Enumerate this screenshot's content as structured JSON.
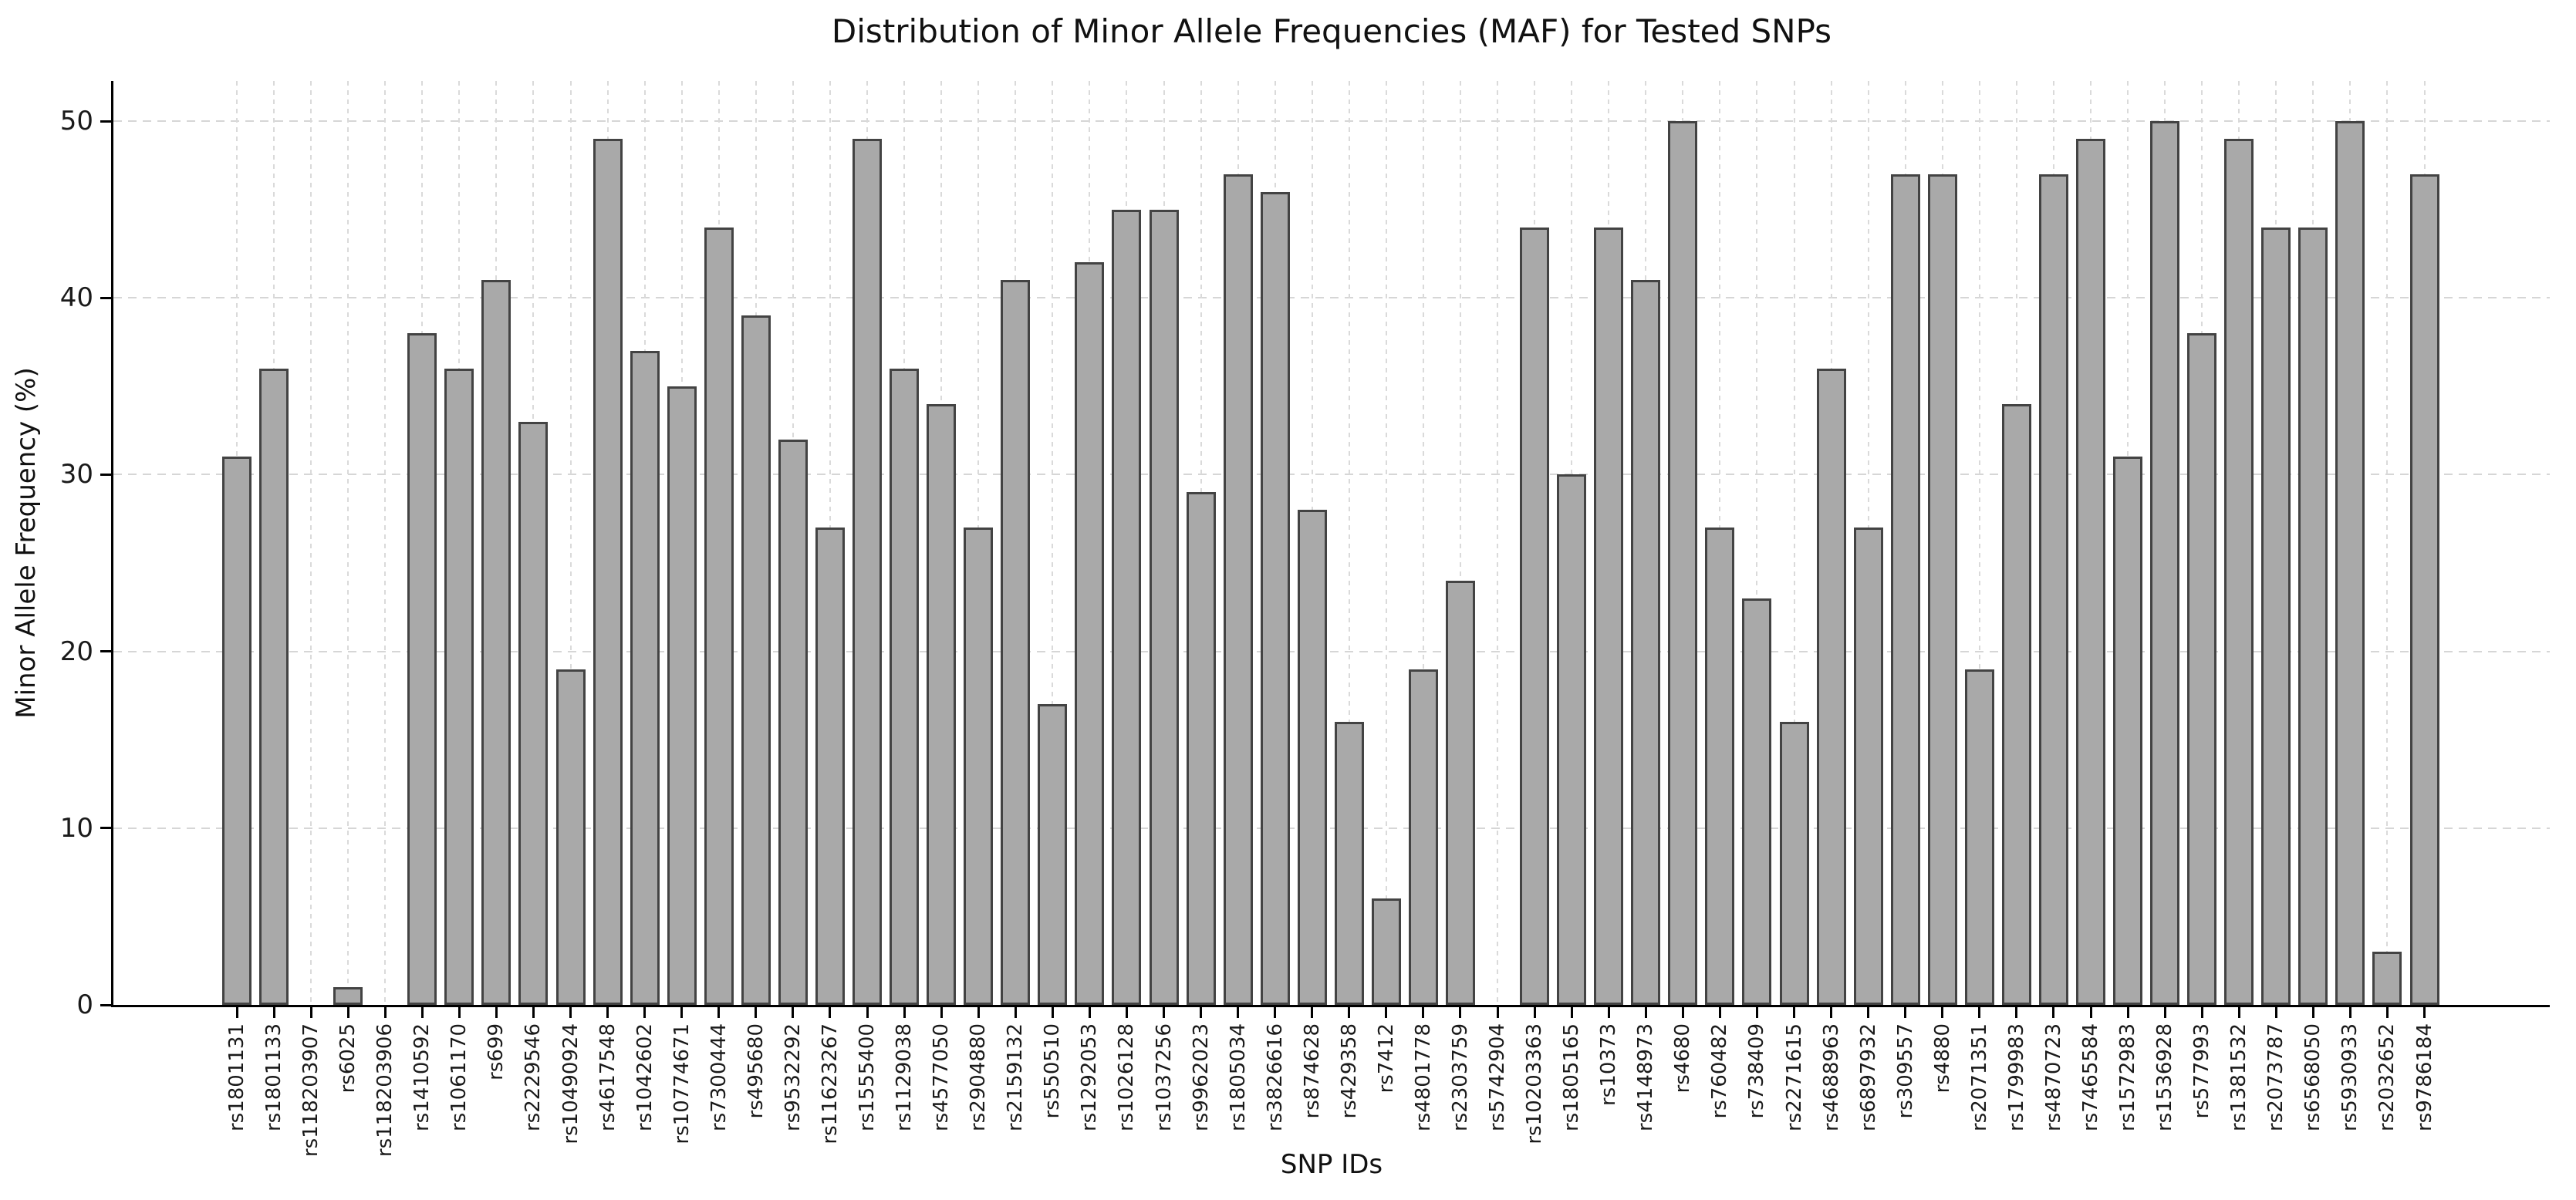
{
  "chart_data": {
    "type": "bar",
    "title": "Distribution of Minor Allele Frequencies (MAF) for Tested SNPs",
    "xlabel": "SNP IDs",
    "ylabel": "Minor Allele Frequency (%)",
    "ylim": [
      0,
      52.3
    ],
    "yticks": [
      0,
      10,
      20,
      30,
      40,
      50
    ],
    "grid": true,
    "legend": "none",
    "bar_color": "#a9a9a9",
    "bar_edge_color": "#434343",
    "grid_color": "#d6d6d6",
    "categories": [
      "rs1801131",
      "rs1801133",
      "rs118203907",
      "rs6025",
      "rs118203906",
      "rs1410592",
      "rs1061170",
      "rs699",
      "rs2229546",
      "rs10490924",
      "rs4617548",
      "rs1042602",
      "rs10774671",
      "rs7300444",
      "rs495680",
      "rs9532292",
      "rs11623267",
      "rs1555400",
      "rs1129038",
      "rs4577050",
      "rs2904880",
      "rs2159132",
      "rs550510",
      "rs1292053",
      "rs1026128",
      "rs1037256",
      "rs9962023",
      "rs1805034",
      "rs3826616",
      "rs874628",
      "rs429358",
      "rs7412",
      "rs4801778",
      "rs2303759",
      "rs5742904",
      "rs10203363",
      "rs1805165",
      "rs10373",
      "rs4148973",
      "rs4680",
      "rs760482",
      "rs738409",
      "rs2271615",
      "rs4688963",
      "rs6897932",
      "rs309557",
      "rs4880",
      "rs2071351",
      "rs1799983",
      "rs4870723",
      "rs7465584",
      "rs1572983",
      "rs1536928",
      "rs577993",
      "rs1381532",
      "rs2073787",
      "rs6568050",
      "rs5930933",
      "rs2032652",
      "rs9786184"
    ],
    "values": [
      31,
      36,
      0,
      1,
      0,
      38,
      36,
      41,
      33,
      19,
      49,
      37,
      35,
      44,
      39,
      32,
      27,
      49,
      36,
      34,
      27,
      41,
      17,
      42,
      45,
      45,
      29,
      47,
      46,
      28,
      16,
      6,
      19,
      24,
      0,
      44,
      30,
      44,
      41,
      50,
      27,
      23,
      16,
      36,
      27,
      47,
      47,
      19,
      34,
      47,
      49,
      31,
      50,
      38,
      49,
      44,
      44,
      50,
      3,
      47
    ]
  }
}
